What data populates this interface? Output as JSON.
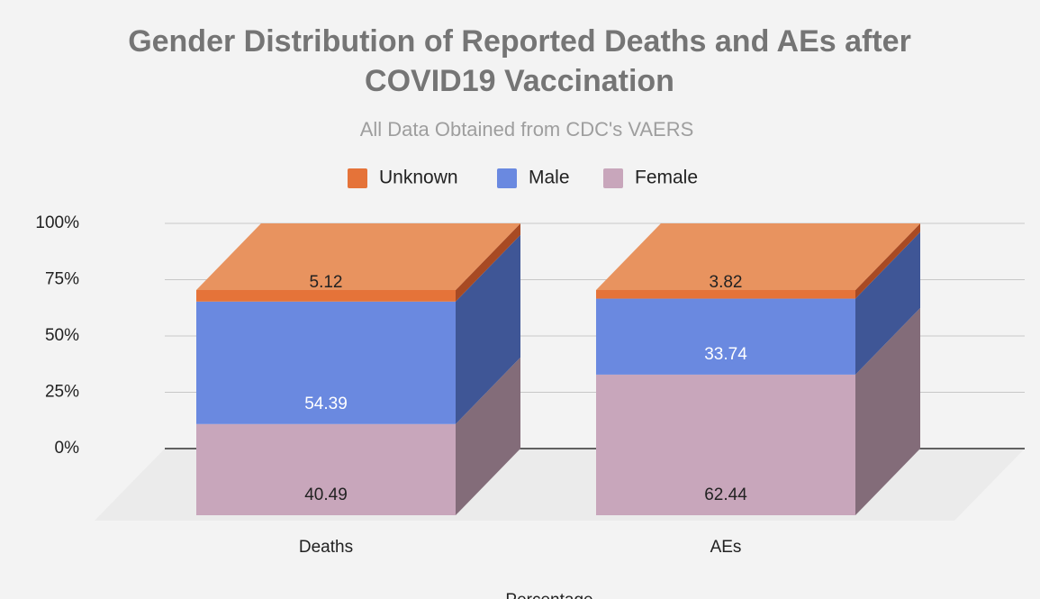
{
  "chart_data": {
    "type": "bar3d_stacked",
    "title": "Gender Distribution of Reported Deaths and AEs after COVID19 Vaccination",
    "subtitle": "All Data Obtained from CDC's VAERS",
    "x_label": "Percentage",
    "categories": [
      "Deaths",
      "AEs"
    ],
    "series": [
      {
        "name": "Female",
        "color": "#c8a6bb",
        "side_color": "#836c79",
        "label_color": "#222222",
        "values": [
          40.49,
          62.44
        ]
      },
      {
        "name": "Male",
        "color": "#6a89e0",
        "side_color": "#3f5696",
        "label_color": "#ffffff",
        "values": [
          54.39,
          33.74
        ]
      },
      {
        "name": "Unknown",
        "color": "#e57339",
        "side_color": "#a84a23",
        "top_color": "#e8935f",
        "label_color": "#222222",
        "values": [
          5.12,
          3.82
        ]
      }
    ],
    "legend_order": [
      "Unknown",
      "Male",
      "Female"
    ],
    "ylim": [
      0,
      100
    ],
    "yticks": [
      {
        "value": 0,
        "label": "0%"
      },
      {
        "value": 25,
        "label": "25%"
      },
      {
        "value": 50,
        "label": "50%"
      },
      {
        "value": 75,
        "label": "75%"
      },
      {
        "value": 100,
        "label": "100%"
      }
    ],
    "grid": true
  }
}
